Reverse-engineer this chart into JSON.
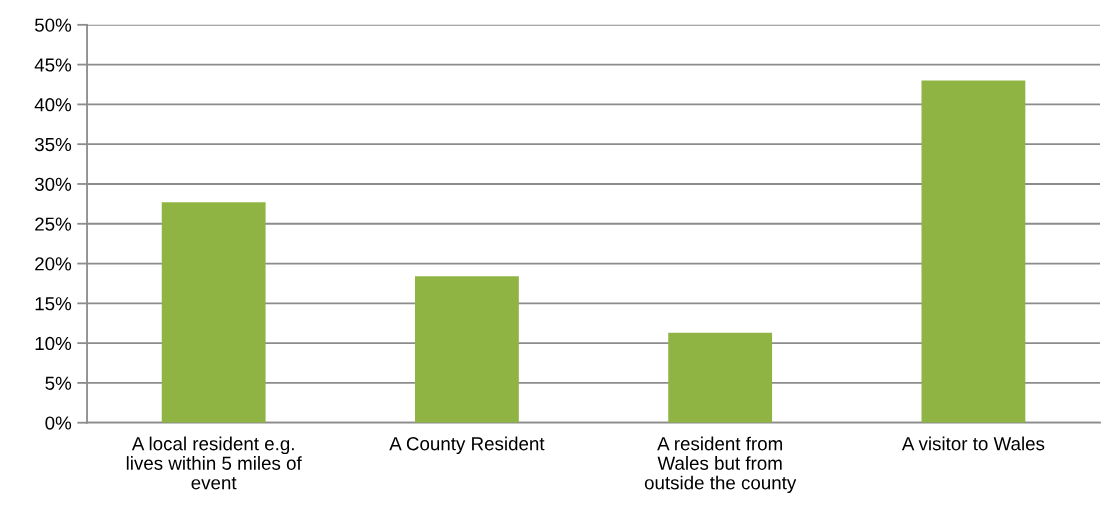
{
  "chart_data": {
    "type": "bar",
    "categories": [
      "A local resident e.g.\nlives within 5 miles of\nevent",
      "A County Resident",
      "A resident from\nWales but from\noutside the county",
      "A visitor to Wales"
    ],
    "values": [
      27.7,
      18.4,
      11.3,
      43
    ],
    "color": "#8fb443",
    "ylim": [
      0,
      50
    ],
    "yticks": [
      {
        "value": 0,
        "label": "0%"
      },
      {
        "value": 5,
        "label": "5%"
      },
      {
        "value": 10,
        "label": "10%"
      },
      {
        "value": 15,
        "label": "15%"
      },
      {
        "value": 20,
        "label": "20%"
      },
      {
        "value": 25,
        "label": "25%"
      },
      {
        "value": 30,
        "label": "30%"
      },
      {
        "value": 35,
        "label": "35%"
      },
      {
        "value": 40,
        "label": "40%"
      },
      {
        "value": 45,
        "label": "45%"
      },
      {
        "value": 50,
        "label": "50%"
      }
    ],
    "grid": "y"
  }
}
